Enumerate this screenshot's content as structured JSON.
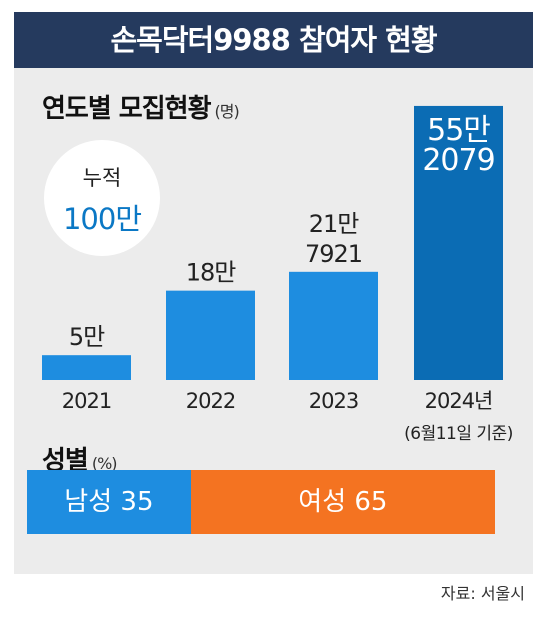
{
  "header": {
    "title": "손목닥터9988 참여자 현황"
  },
  "sections": {
    "yearly_title": "연도별 모집현황",
    "yearly_unit": "(명)",
    "gender_title": "성별",
    "gender_unit": "(%)"
  },
  "cumulative": {
    "label": "누적",
    "value": "100만"
  },
  "source": "자료: 서울시",
  "colors": {
    "header_bg": "#253a5e",
    "bar": "#1e8de0",
    "bar_latest": "#0b6cb4",
    "female": "#f47321",
    "accent_text": "#0b78c5"
  },
  "chart_data": [
    {
      "type": "bar",
      "title": "연도별 모집현황",
      "unit": "(명)",
      "categories": [
        "2021",
        "2022",
        "2023",
        "2024년"
      ],
      "category_notes": [
        "",
        "",
        "",
        "(6월11일 기준)"
      ],
      "values": [
        50000,
        180000,
        217921,
        552079
      ],
      "value_labels": [
        [
          "5만"
        ],
        [
          "18만"
        ],
        [
          "21만",
          "7921"
        ],
        [
          "55만",
          "2079"
        ]
      ],
      "ylim": [
        0,
        560000
      ]
    },
    {
      "type": "bar",
      "orientation": "horizontal-stacked",
      "title": "성별",
      "unit": "(%)",
      "series": [
        {
          "name": "남성",
          "values": [
            35
          ]
        },
        {
          "name": "여성",
          "values": [
            65
          ]
        }
      ]
    }
  ]
}
